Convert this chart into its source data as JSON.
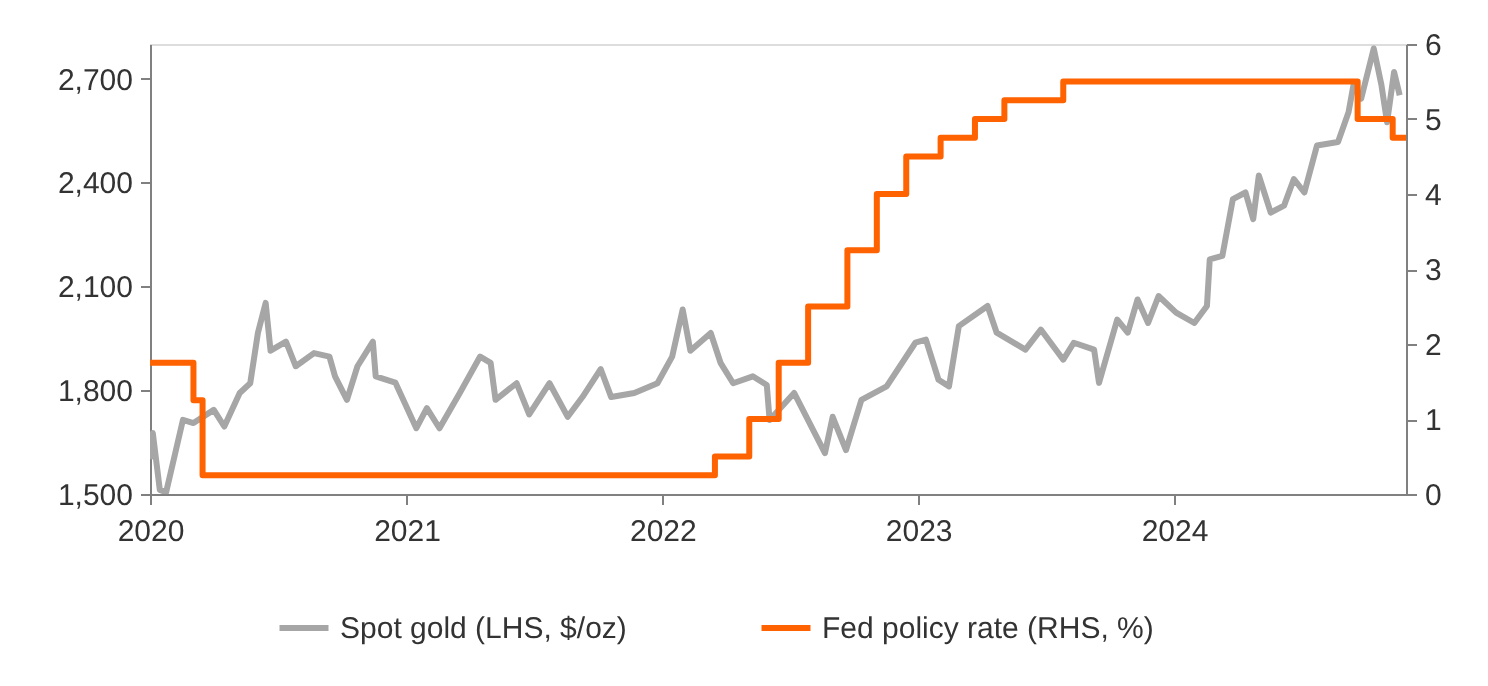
{
  "chart_data": {
    "type": "line",
    "legend": "bottom",
    "grid": false,
    "xlim": [
      "2020-01-01",
      "2024-11-27"
    ],
    "xticks": [
      "2020",
      "2021",
      "2022",
      "2023",
      "2024"
    ],
    "ylim": [
      1500,
      2800
    ],
    "yticks": [
      {
        "value": 1500,
        "label": "1,500"
      },
      {
        "value": 1800,
        "label": "1,800"
      },
      {
        "value": 2100,
        "label": "2,100"
      },
      {
        "value": 2400,
        "label": "2,400"
      },
      {
        "value": 2700,
        "label": "2,700"
      }
    ],
    "y2lim": [
      0,
      6
    ],
    "y2ticks": [
      0,
      1,
      2,
      3,
      4,
      5,
      6
    ],
    "series": [
      {
        "name": "Spot gold (LHS, $/oz)",
        "type": "line",
        "color": "#a6a6a6",
        "x": [
          "2020-01-02",
          "2020-01-05",
          "2020-01-15",
          "2020-01-24",
          "2020-02-06",
          "2020-02-17",
          "2020-03-03",
          "2020-04-01",
          "2020-04-16",
          "2020-05-08",
          "2020-05-23",
          "2020-06-03",
          "2020-06-14",
          "2020-06-21",
          "2020-07-13",
          "2020-07-27",
          "2020-08-22",
          "2020-09-13",
          "2020-09-21",
          "2020-10-08",
          "2020-10-23",
          "2020-11-14",
          "2020-11-18",
          "2020-12-16",
          "2021-01-15",
          "2021-01-30",
          "2021-02-17",
          "2021-03-18",
          "2021-04-16",
          "2021-05-01",
          "2021-05-08",
          "2021-06-07",
          "2021-06-25",
          "2021-07-24",
          "2021-08-19",
          "2021-09-09",
          "2021-10-05",
          "2021-10-20",
          "2021-11-22",
          "2021-12-25",
          "2022-01-15",
          "2022-01-30",
          "2022-02-10",
          "2022-03-11",
          "2022-03-25",
          "2022-04-12",
          "2022-05-10",
          "2022-05-30",
          "2022-06-03",
          "2022-07-08",
          "2022-08-21",
          "2022-09-01",
          "2022-09-20",
          "2022-10-12",
          "2022-11-17",
          "2022-12-28",
          "2023-01-12",
          "2023-01-30",
          "2023-02-14",
          "2023-02-28",
          "2023-04-10",
          "2023-04-23",
          "2023-06-03",
          "2023-06-25",
          "2023-07-27",
          "2023-08-11",
          "2023-09-09",
          "2023-09-16",
          "2023-10-12",
          "2023-10-27",
          "2023-11-10",
          "2023-11-25",
          "2023-12-10",
          "2024-01-04",
          "2024-01-30",
          "2024-02-17",
          "2024-02-21",
          "2024-03-10",
          "2024-03-25",
          "2024-04-12",
          "2024-04-23",
          "2024-05-01",
          "2024-05-18",
          "2024-06-06",
          "2024-06-20",
          "2024-07-05",
          "2024-07-23",
          "2024-08-22",
          "2024-09-06",
          "2024-09-13",
          "2024-09-24",
          "2024-10-12",
          "2024-10-23",
          "2024-10-31",
          "2024-11-10",
          "2024-11-18"
        ],
        "values": [
          1600,
          1676,
          1512,
          1505,
          1618,
          1714,
          1705,
          1743,
          1695,
          1792,
          1820,
          1966,
          2052,
          1914,
          1940,
          1869,
          1907,
          1897,
          1840,
          1772,
          1869,
          1940,
          1840,
          1822,
          1690,
          1748,
          1690,
          1792,
          1897,
          1879,
          1772,
          1820,
          1730,
          1820,
          1723,
          1780,
          1861,
          1780,
          1792,
          1820,
          1897,
          2033,
          1914,
          1965,
          1879,
          1820,
          1840,
          1815,
          1714,
          1792,
          1618,
          1723,
          1627,
          1772,
          1811,
          1937,
          1946,
          1830,
          1811,
          1985,
          2043,
          1966,
          1917,
          1975,
          1888,
          1937,
          1917,
          1821,
          2004,
          1966,
          2062,
          1994,
          2072,
          2024,
          1994,
          2043,
          2178,
          2188,
          2352,
          2371,
          2294,
          2420,
          2313,
          2333,
          2410,
          2371,
          2507,
          2517,
          2603,
          2681,
          2642,
          2787,
          2681,
          2574,
          2719,
          2652
        ]
      },
      {
        "name": "Fed policy rate (RHS, %)",
        "type": "step",
        "axis": "y2",
        "color": "#ff6200",
        "x": [
          "2020-01-01",
          "2020-03-03",
          "2020-03-16",
          "2022-03-17",
          "2022-05-05",
          "2022-06-16",
          "2022-07-28",
          "2022-09-22",
          "2022-11-03",
          "2022-12-15",
          "2023-02-02",
          "2023-03-23",
          "2023-05-04",
          "2023-07-27",
          "2024-09-19",
          "2024-11-08",
          "2024-11-27"
        ],
        "values": [
          1.75,
          1.25,
          0.25,
          0.5,
          1.0,
          1.75,
          2.5,
          3.25,
          4.0,
          4.5,
          4.75,
          5.0,
          5.25,
          5.5,
          5.0,
          4.75,
          4.75
        ]
      }
    ]
  }
}
